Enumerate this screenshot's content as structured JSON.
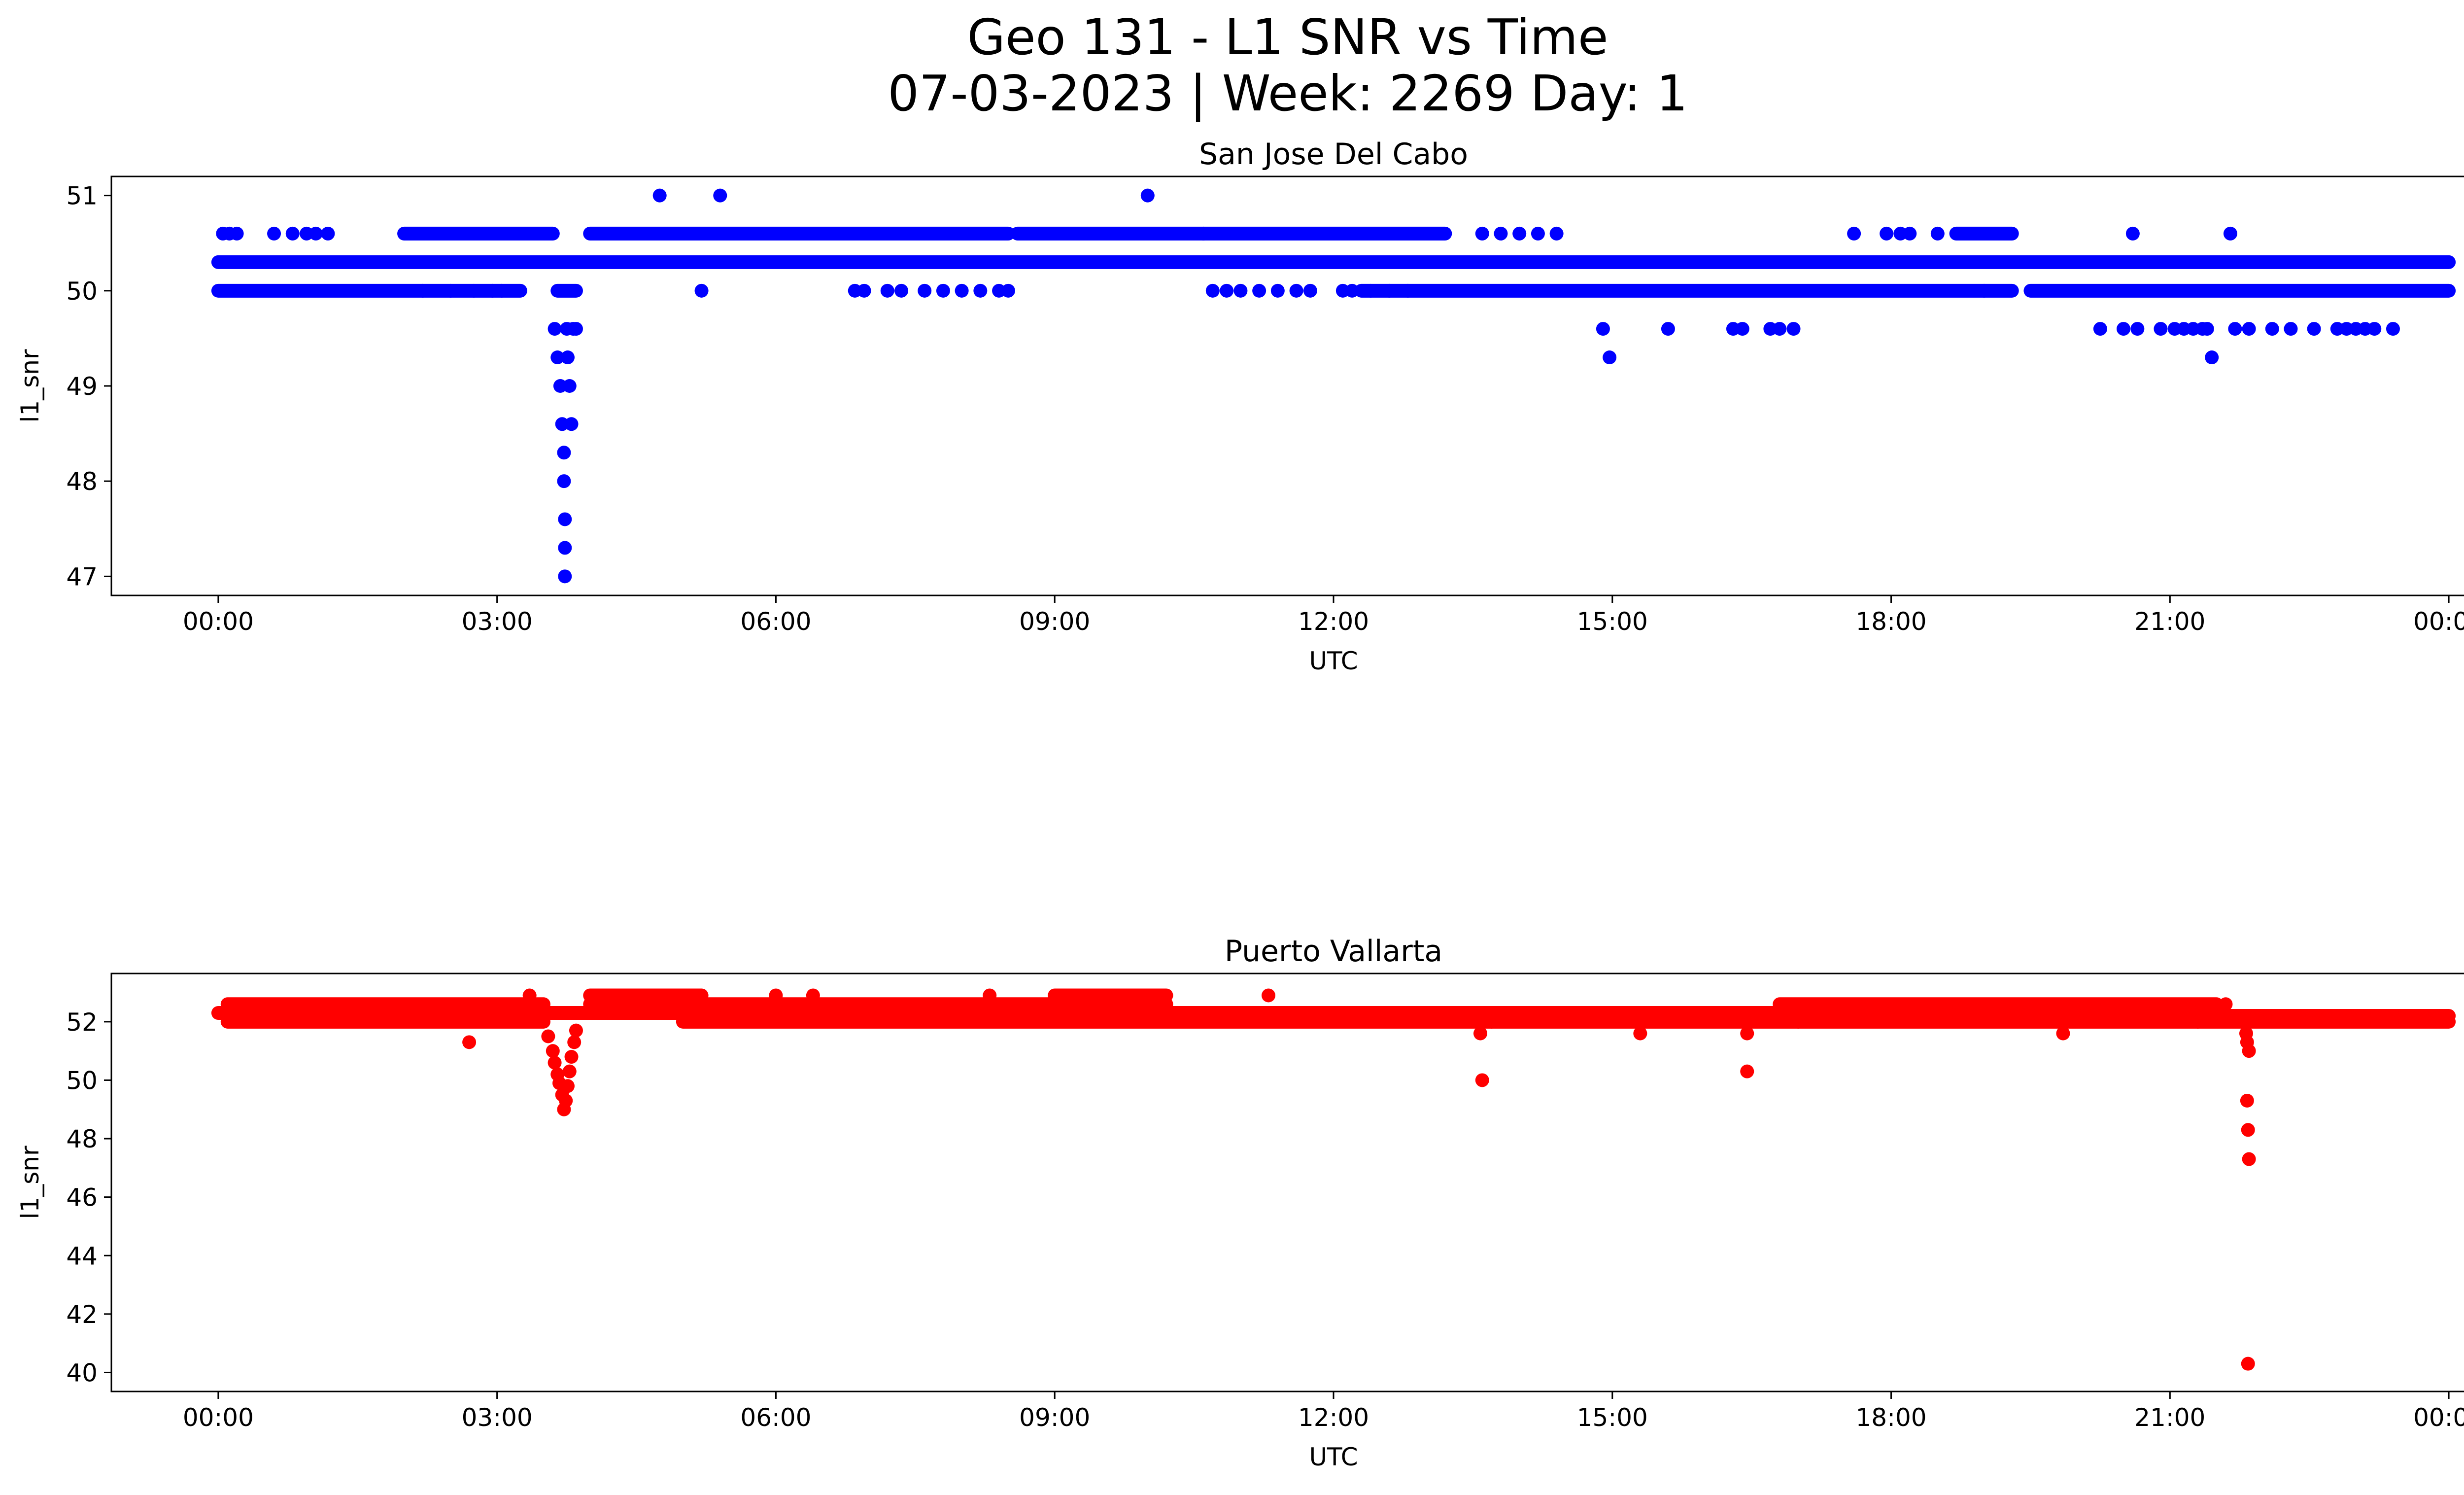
{
  "figure": {
    "title_line1": "Geo 131 - L1 SNR vs Time",
    "title_line2": "07-03-2023 | Week: 2269 Day: 1"
  },
  "chart_data": [
    {
      "type": "scatter",
      "title": "San Jose Del Cabo",
      "xlabel": "UTC",
      "ylabel": "l1_snr",
      "color": "#0000ff",
      "x_unit": "hours UTC (00:00 to 24:00)",
      "xlim": [
        "00:00",
        "24:00"
      ],
      "ylim": [
        47,
        51
      ],
      "xticks": [
        "00:00",
        "03:00",
        "06:00",
        "09:00",
        "12:00",
        "15:00",
        "18:00",
        "21:00",
        "00:00"
      ],
      "yticks": [
        47,
        48,
        49,
        50,
        51
      ],
      "bands": [
        {
          "y": 50.3,
          "ranges": [
            [
              0.0,
              24.0
            ]
          ]
        },
        {
          "y": 50.0,
          "ranges": [
            [
              0.0,
              3.25
            ],
            [
              3.65,
              3.85
            ],
            [
              12.3,
              19.3
            ],
            [
              19.5,
              24.0
            ]
          ]
        },
        {
          "y": 50.6,
          "ranges": [
            [
              2.0,
              3.6
            ],
            [
              4.0,
              8.5
            ],
            [
              8.6,
              10.6
            ],
            [
              10.6,
              13.2
            ],
            [
              18.7,
              19.3
            ]
          ]
        }
      ],
      "points": [
        [
          0.05,
          50.6
        ],
        [
          0.12,
          50.6
        ],
        [
          0.2,
          50.6
        ],
        [
          0.6,
          50.6
        ],
        [
          0.8,
          50.6
        ],
        [
          0.95,
          50.6
        ],
        [
          1.05,
          50.6
        ],
        [
          1.18,
          50.6
        ],
        [
          2.2,
          50.0
        ],
        [
          2.5,
          50.0
        ],
        [
          2.75,
          50.0
        ],
        [
          2.95,
          50.0
        ],
        [
          3.05,
          50.0
        ],
        [
          3.62,
          49.6
        ],
        [
          3.65,
          49.3
        ],
        [
          3.68,
          49.0
        ],
        [
          3.7,
          48.6
        ],
        [
          3.72,
          48.3
        ],
        [
          3.72,
          48.0
        ],
        [
          3.73,
          47.6
        ],
        [
          3.73,
          47.3
        ],
        [
          3.73,
          47.0
        ],
        [
          3.75,
          49.6
        ],
        [
          3.76,
          49.3
        ],
        [
          3.78,
          49.0
        ],
        [
          3.8,
          48.6
        ],
        [
          3.82,
          49.6
        ],
        [
          3.85,
          49.6
        ],
        [
          4.75,
          51.0
        ],
        [
          5.4,
          51.0
        ],
        [
          5.2,
          50.0
        ],
        [
          6.85,
          50.0
        ],
        [
          6.95,
          50.0
        ],
        [
          7.2,
          50.0
        ],
        [
          7.35,
          50.0
        ],
        [
          7.6,
          50.0
        ],
        [
          7.8,
          50.0
        ],
        [
          8.0,
          50.0
        ],
        [
          8.2,
          50.0
        ],
        [
          8.4,
          50.0
        ],
        [
          8.5,
          50.0
        ],
        [
          10.0,
          51.0
        ],
        [
          10.7,
          50.0
        ],
        [
          10.85,
          50.0
        ],
        [
          11.0,
          50.0
        ],
        [
          11.2,
          50.0
        ],
        [
          11.4,
          50.0
        ],
        [
          11.6,
          50.0
        ],
        [
          11.75,
          50.0
        ],
        [
          12.1,
          50.0
        ],
        [
          12.2,
          50.0
        ],
        [
          12.4,
          50.0
        ],
        [
          12.6,
          50.0
        ],
        [
          12.8,
          50.0
        ],
        [
          13.6,
          50.6
        ],
        [
          13.8,
          50.6
        ],
        [
          14.0,
          50.6
        ],
        [
          14.2,
          50.6
        ],
        [
          14.4,
          50.6
        ],
        [
          14.9,
          49.6
        ],
        [
          14.97,
          49.3
        ],
        [
          15.6,
          49.6
        ],
        [
          16.3,
          49.6
        ],
        [
          16.4,
          49.6
        ],
        [
          16.7,
          49.6
        ],
        [
          16.8,
          49.6
        ],
        [
          16.95,
          49.6
        ],
        [
          17.6,
          50.6
        ],
        [
          17.95,
          50.6
        ],
        [
          18.1,
          50.6
        ],
        [
          18.2,
          50.6
        ],
        [
          18.5,
          50.6
        ],
        [
          19.0,
          50.0
        ],
        [
          20.25,
          49.6
        ],
        [
          20.5,
          49.6
        ],
        [
          20.6,
          50.6
        ],
        [
          20.65,
          49.6
        ],
        [
          20.9,
          49.6
        ],
        [
          21.05,
          49.6
        ],
        [
          21.15,
          49.6
        ],
        [
          21.25,
          49.6
        ],
        [
          21.35,
          49.6
        ],
        [
          21.4,
          49.6
        ],
        [
          21.45,
          49.3
        ],
        [
          21.65,
          50.6
        ],
        [
          21.7,
          49.6
        ],
        [
          21.85,
          49.6
        ],
        [
          22.1,
          49.6
        ],
        [
          22.3,
          49.6
        ],
        [
          22.55,
          49.6
        ],
        [
          22.8,
          49.6
        ],
        [
          22.9,
          49.6
        ],
        [
          23.0,
          49.6
        ],
        [
          23.1,
          49.6
        ],
        [
          23.2,
          49.6
        ],
        [
          23.4,
          49.6
        ]
      ]
    },
    {
      "type": "scatter",
      "title": "Puerto Vallarta",
      "xlabel": "UTC",
      "ylabel": "l1_snr",
      "color": "#ff0000",
      "x_unit": "hours UTC (00:00 to 24:00)",
      "xlim": [
        "00:00",
        "24:00"
      ],
      "ylim": [
        40,
        53
      ],
      "xticks": [
        "00:00",
        "03:00",
        "06:00",
        "09:00",
        "12:00",
        "15:00",
        "18:00",
        "21:00",
        "00:00"
      ],
      "yticks": [
        40,
        42,
        44,
        46,
        48,
        50,
        52
      ],
      "bands": [
        {
          "y": 52.3,
          "ranges": [
            [
              0.0,
              17.0
            ]
          ]
        },
        {
          "y": 52.0,
          "ranges": [
            [
              0.1,
              3.5
            ],
            [
              5.0,
              17.0
            ],
            [
              17.0,
              24.0
            ]
          ]
        },
        {
          "y": 52.6,
          "ranges": [
            [
              0.1,
              3.5
            ],
            [
              4.0,
              6.0
            ],
            [
              6.0,
              10.2
            ],
            [
              16.8,
              21.5
            ]
          ]
        },
        {
          "y": 52.9,
          "ranges": [
            [
              4.0,
              5.2
            ],
            [
              9.0,
              10.2
            ]
          ]
        },
        {
          "y": 52.2,
          "ranges": [
            [
              17.0,
              24.0
            ]
          ]
        }
      ],
      "points": [
        [
          2.7,
          51.3
        ],
        [
          3.35,
          52.9
        ],
        [
          3.55,
          51.5
        ],
        [
          3.6,
          51.0
        ],
        [
          3.62,
          50.6
        ],
        [
          3.65,
          50.2
        ],
        [
          3.67,
          49.9
        ],
        [
          3.7,
          49.5
        ],
        [
          3.72,
          49.0
        ],
        [
          3.74,
          49.3
        ],
        [
          3.76,
          49.8
        ],
        [
          3.78,
          50.3
        ],
        [
          3.8,
          50.8
        ],
        [
          3.83,
          51.3
        ],
        [
          3.85,
          51.7
        ],
        [
          6.0,
          52.9
        ],
        [
          6.4,
          52.9
        ],
        [
          8.3,
          52.9
        ],
        [
          11.3,
          52.9
        ],
        [
          13.6,
          50.0
        ],
        [
          13.58,
          51.6
        ],
        [
          13.7,
          52.0
        ],
        [
          15.3,
          51.6
        ],
        [
          16.45,
          51.6
        ],
        [
          16.45,
          50.3
        ],
        [
          19.85,
          51.6
        ],
        [
          21.3,
          52.0
        ],
        [
          21.6,
          52.6
        ],
        [
          21.82,
          51.6
        ],
        [
          21.83,
          51.3
        ],
        [
          21.85,
          51.0
        ],
        [
          21.83,
          49.3
        ],
        [
          21.84,
          48.3
        ],
        [
          21.85,
          47.3
        ],
        [
          21.84,
          40.3
        ]
      ]
    }
  ]
}
